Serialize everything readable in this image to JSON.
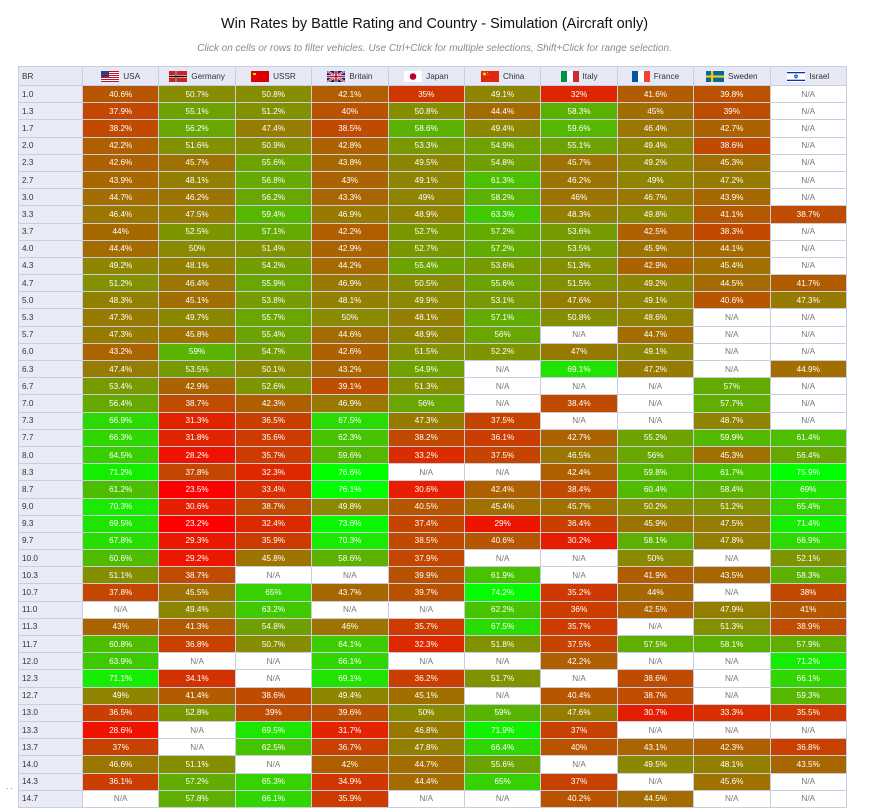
{
  "page": {
    "title": "Win Rates by Battle Rating and Country - Simulation (Aircraft only)",
    "instructions": "Click on cells or rows to filter vehicles. Use Ctrl+Click for multiple selections, Shift+Click for range selection.",
    "footer_mark": ". ."
  },
  "table": {
    "br_header": "BR",
    "na_label": "N/A",
    "columns": [
      {
        "label": "USA",
        "icon": "usa-flag-icon",
        "flag": "usa"
      },
      {
        "label": "Germany",
        "icon": "germany-flag-icon",
        "flag": "germany"
      },
      {
        "label": "USSR",
        "icon": "ussr-flag-icon",
        "flag": "ussr"
      },
      {
        "label": "Britain",
        "icon": "britain-flag-icon",
        "flag": "britain"
      },
      {
        "label": "Japan",
        "icon": "japan-flag-icon",
        "flag": "japan"
      },
      {
        "label": "China",
        "icon": "china-flag-icon",
        "flag": "china"
      },
      {
        "label": "Italy",
        "icon": "italy-flag-icon",
        "flag": "italy"
      },
      {
        "label": "France",
        "icon": "france-flag-icon",
        "flag": "france"
      },
      {
        "label": "Sweden",
        "icon": "sweden-flag-icon",
        "flag": "sweden"
      },
      {
        "label": "Israel",
        "icon": "israel-flag-icon",
        "flag": "israel"
      }
    ],
    "rows": [
      {
        "br": "1.0",
        "values": [
          "40.6%",
          "50.7%",
          "50.8%",
          "42.1%",
          "35%",
          "49.1%",
          "32%",
          "41.6%",
          "39.8%",
          "N/A"
        ]
      },
      {
        "br": "1.3",
        "values": [
          "37.9%",
          "55.1%",
          "51.2%",
          "40%",
          "50.8%",
          "44.4%",
          "58.3%",
          "45%",
          "39%",
          "N/A"
        ]
      },
      {
        "br": "1.7",
        "values": [
          "38.2%",
          "56.2%",
          "47.4%",
          "38.5%",
          "58.6%",
          "49.4%",
          "59.6%",
          "46.4%",
          "42.7%",
          "N/A"
        ]
      },
      {
        "br": "2.0",
        "values": [
          "42.2%",
          "51.6%",
          "50.9%",
          "42.8%",
          "53.3%",
          "54.9%",
          "55.1%",
          "49.4%",
          "38.6%",
          "N/A"
        ]
      },
      {
        "br": "2.3",
        "values": [
          "42.6%",
          "45.7%",
          "55.6%",
          "43.8%",
          "49.5%",
          "54.8%",
          "45.7%",
          "49.2%",
          "45.3%",
          "N/A"
        ]
      },
      {
        "br": "2.7",
        "values": [
          "43.9%",
          "48.1%",
          "56.8%",
          "43%",
          "49.1%",
          "61.3%",
          "46.2%",
          "49%",
          "47.2%",
          "N/A"
        ]
      },
      {
        "br": "3.0",
        "values": [
          "44.7%",
          "46.2%",
          "56.2%",
          "43.3%",
          "49%",
          "58.2%",
          "46%",
          "46.7%",
          "43.9%",
          "N/A"
        ]
      },
      {
        "br": "3.3",
        "values": [
          "46.4%",
          "47.5%",
          "59.4%",
          "46.9%",
          "48.9%",
          "63.3%",
          "48.3%",
          "49.8%",
          "41.1%",
          "38.7%"
        ]
      },
      {
        "br": "3.7",
        "values": [
          "44%",
          "52.5%",
          "57.1%",
          "42.2%",
          "52.7%",
          "57.2%",
          "53.6%",
          "42.5%",
          "38.3%",
          "N/A"
        ]
      },
      {
        "br": "4.0",
        "values": [
          "44.4%",
          "50%",
          "51.4%",
          "42.9%",
          "52.7%",
          "57.2%",
          "53.5%",
          "45.9%",
          "44.1%",
          "N/A"
        ]
      },
      {
        "br": "4.3",
        "values": [
          "49.2%",
          "48.1%",
          "54.2%",
          "44.2%",
          "55.4%",
          "53.6%",
          "51.3%",
          "42.9%",
          "45.4%",
          "N/A"
        ]
      },
      {
        "br": "4.7",
        "values": [
          "51.2%",
          "46.4%",
          "55.9%",
          "46.9%",
          "50.5%",
          "55.6%",
          "51.5%",
          "49.2%",
          "44.5%",
          "41.7%"
        ]
      },
      {
        "br": "5.0",
        "values": [
          "48.3%",
          "45.1%",
          "53.8%",
          "48.1%",
          "49.9%",
          "53.1%",
          "47.6%",
          "49.1%",
          "40.6%",
          "47.3%"
        ]
      },
      {
        "br": "5.3",
        "values": [
          "47.3%",
          "49.7%",
          "55.7%",
          "50%",
          "48.1%",
          "57.1%",
          "50.8%",
          "48.6%",
          "N/A",
          "N/A"
        ]
      },
      {
        "br": "5.7",
        "values": [
          "47.3%",
          "45.8%",
          "55.4%",
          "44.6%",
          "48.9%",
          "56%",
          "N/A",
          "44.7%",
          "N/A",
          "N/A"
        ]
      },
      {
        "br": "6.0",
        "values": [
          "43.2%",
          "59%",
          "54.7%",
          "42.6%",
          "51.5%",
          "52.2%",
          "47%",
          "49.1%",
          "N/A",
          "N/A"
        ]
      },
      {
        "br": "6.3",
        "values": [
          "47.4%",
          "53.5%",
          "50.1%",
          "43.2%",
          "54.9%",
          "N/A",
          "69.1%",
          "47.2%",
          "N/A",
          "44.9%"
        ]
      },
      {
        "br": "6.7",
        "values": [
          "53.4%",
          "42.9%",
          "52.6%",
          "39.1%",
          "51.3%",
          "N/A",
          "N/A",
          "N/A",
          "57%",
          "N/A"
        ]
      },
      {
        "br": "7.0",
        "values": [
          "56.4%",
          "38.7%",
          "42.3%",
          "46.9%",
          "56%",
          "N/A",
          "38.4%",
          "N/A",
          "57.7%",
          "N/A"
        ]
      },
      {
        "br": "7.3",
        "values": [
          "66.9%",
          "31.3%",
          "36.5%",
          "67.5%",
          "47.3%",
          "37.5%",
          "N/A",
          "N/A",
          "48.7%",
          "N/A"
        ]
      },
      {
        "br": "7.7",
        "values": [
          "66.3%",
          "31.8%",
          "35.6%",
          "62.3%",
          "38.2%",
          "36.1%",
          "42.7%",
          "55.2%",
          "59.9%",
          "61.4%"
        ]
      },
      {
        "br": "8.0",
        "values": [
          "64.5%",
          "28.2%",
          "35.7%",
          "59.6%",
          "33.2%",
          "37.5%",
          "46.5%",
          "56%",
          "45.3%",
          "56.4%"
        ]
      },
      {
        "br": "8.3",
        "values": [
          "71.2%",
          "37.8%",
          "32.3%",
          "76.6%",
          "N/A",
          "N/A",
          "42.4%",
          "59.8%",
          "61.7%",
          "75.9%"
        ]
      },
      {
        "br": "8.7",
        "values": [
          "61.2%",
          "23.5%",
          "33.4%",
          "76.1%",
          "30.6%",
          "42.4%",
          "38.4%",
          "60.4%",
          "58.4%",
          "69%"
        ]
      },
      {
        "br": "9.0",
        "values": [
          "70.3%",
          "30.6%",
          "38.7%",
          "49.8%",
          "40.5%",
          "45.4%",
          "45.7%",
          "50.2%",
          "51.2%",
          "65.4%"
        ]
      },
      {
        "br": "9.3",
        "values": [
          "69.5%",
          "23.2%",
          "32.4%",
          "73.6%",
          "37.4%",
          "29%",
          "36.4%",
          "45.9%",
          "47.5%",
          "71.4%"
        ]
      },
      {
        "br": "9.7",
        "values": [
          "67.8%",
          "29.3%",
          "35.9%",
          "70.3%",
          "38.5%",
          "40.6%",
          "30.2%",
          "58.1%",
          "47.8%",
          "66.9%"
        ]
      },
      {
        "br": "10.0",
        "values": [
          "60.6%",
          "29.2%",
          "45.8%",
          "58.6%",
          "37.9%",
          "N/A",
          "N/A",
          "50%",
          "N/A",
          "52.1%"
        ]
      },
      {
        "br": "10.3",
        "values": [
          "51.1%",
          "38.7%",
          "N/A",
          "N/A",
          "39.9%",
          "61.9%",
          "N/A",
          "41.9%",
          "43.5%",
          "58.3%"
        ]
      },
      {
        "br": "10.7",
        "values": [
          "37.8%",
          "45.5%",
          "65%",
          "43.7%",
          "39.7%",
          "74.2%",
          "35.2%",
          "44%",
          "N/A",
          "38%"
        ]
      },
      {
        "br": "11.0",
        "values": [
          "N/A",
          "49.4%",
          "63.2%",
          "N/A",
          "N/A",
          "62.2%",
          "36%",
          "42.5%",
          "47.9%",
          "41%"
        ]
      },
      {
        "br": "11.3",
        "values": [
          "43%",
          "41.3%",
          "54.8%",
          "46%",
          "35.7%",
          "67.5%",
          "35.7%",
          "N/A",
          "51.3%",
          "38.9%"
        ]
      },
      {
        "br": "11.7",
        "values": [
          "60.8%",
          "36.8%",
          "50.7%",
          "64.1%",
          "32.3%",
          "51.8%",
          "37.5%",
          "57.5%",
          "58.1%",
          "57.9%"
        ]
      },
      {
        "br": "12.0",
        "values": [
          "63.9%",
          "N/A",
          "N/A",
          "66.1%",
          "N/A",
          "N/A",
          "42.2%",
          "N/A",
          "N/A",
          "71.2%"
        ]
      },
      {
        "br": "12.3",
        "values": [
          "71.1%",
          "34.1%",
          "N/A",
          "69.1%",
          "36.2%",
          "51.7%",
          "N/A",
          "38.6%",
          "N/A",
          "66.1%"
        ]
      },
      {
        "br": "12.7",
        "values": [
          "49%",
          "41.4%",
          "38.6%",
          "49.4%",
          "45.1%",
          "N/A",
          "40.4%",
          "38.7%",
          "N/A",
          "59.3%"
        ]
      },
      {
        "br": "13.0",
        "values": [
          "36.5%",
          "52.8%",
          "39%",
          "39.6%",
          "50%",
          "59%",
          "47.6%",
          "30.7%",
          "33.3%",
          "35.5%"
        ]
      },
      {
        "br": "13.3",
        "values": [
          "28.6%",
          "N/A",
          "69.5%",
          "31.7%",
          "46.8%",
          "71.9%",
          "37%",
          "N/A",
          "N/A",
          "N/A"
        ]
      },
      {
        "br": "13.7",
        "values": [
          "37%",
          "N/A",
          "62.5%",
          "36.7%",
          "47.8%",
          "66.4%",
          "40%",
          "43.1%",
          "42.3%",
          "36.8%"
        ]
      },
      {
        "br": "14.0",
        "values": [
          "46.6%",
          "51.1%",
          "N/A",
          "42%",
          "44.7%",
          "55.6%",
          "N/A",
          "49.5%",
          "48.1%",
          "43.5%"
        ]
      },
      {
        "br": "14.3",
        "values": [
          "36.1%",
          "57.2%",
          "65.3%",
          "34.9%",
          "44.4%",
          "65%",
          "37%",
          "N/A",
          "45.6%",
          "N/A"
        ]
      },
      {
        "br": "14.7",
        "values": [
          "N/A",
          "57.8%",
          "66.1%",
          "35.9%",
          "N/A",
          "N/A",
          "40.2%",
          "44.5%",
          "N/A",
          "N/A"
        ]
      }
    ]
  },
  "colors": {
    "header_bg": "#e6e9f5",
    "br_bg": "#e8ebf6",
    "grid": "#c9cde0",
    "na_bg": "#ffffff",
    "low_red": "#ff0000",
    "mid_olive": "#8a8a00",
    "high_green": "#00ff00"
  }
}
